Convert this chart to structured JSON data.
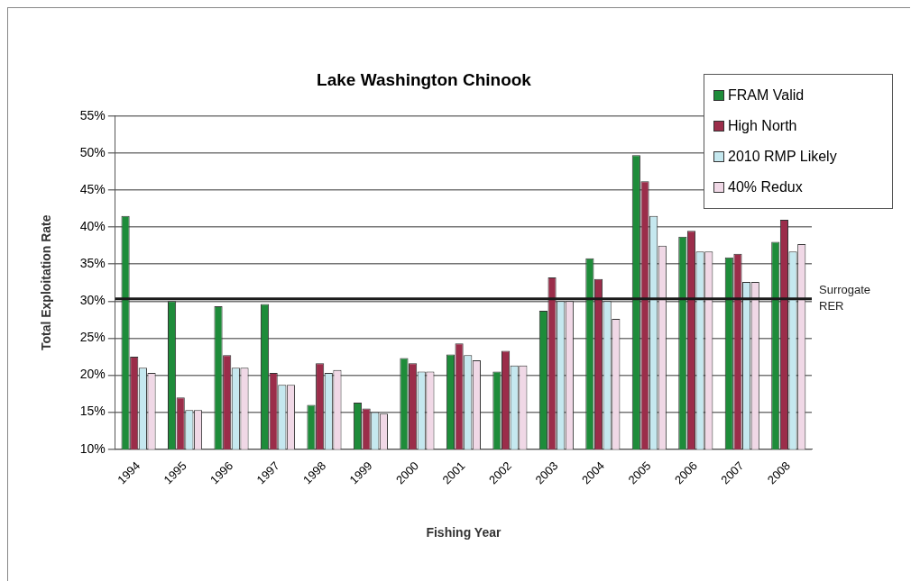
{
  "chart_data": {
    "type": "bar",
    "title": "Lake Washington Chinook",
    "xlabel": "Fishing Year",
    "ylabel": "Total Exploitation Rate",
    "categories": [
      "1994",
      "1995",
      "1996",
      "1997",
      "1998",
      "1999",
      "2000",
      "2001",
      "2002",
      "2003",
      "2004",
      "2005",
      "2006",
      "2007",
      "2008"
    ],
    "series": [
      {
        "name": "FRAM Valid",
        "color": "#1e8c3a",
        "values": [
          41.5,
          30,
          29.3,
          29.6,
          16,
          16.3,
          22.3,
          22.8,
          20.5,
          28.7,
          35.8,
          49.7,
          38.7,
          35.9,
          38
        ]
      },
      {
        "name": "High North",
        "color": "#9b2d4a",
        "values": [
          22.5,
          17,
          22.7,
          20.3,
          21.6,
          15.5,
          21.6,
          24.3,
          23.3,
          33.2,
          33,
          46.2,
          39.5,
          36.4,
          41
        ]
      },
      {
        "name": "2010 RMP Likely",
        "color": "#c5e8ef",
        "values": [
          21,
          15.3,
          21,
          18.7,
          20.3,
          15,
          20.5,
          22.7,
          21.3,
          30,
          30,
          41.5,
          36.7,
          32.6,
          36.7
        ]
      },
      {
        "name": "40% Redux",
        "color": "#f0d8e6",
        "values": [
          20.3,
          15.3,
          21,
          18.7,
          20.7,
          14.8,
          20.5,
          22,
          21.3,
          30,
          27.6,
          37.5,
          36.7,
          32.6,
          37.7
        ]
      }
    ],
    "ylim": [
      10,
      55
    ],
    "yticks": [
      {
        "value": 10,
        "label": "10%"
      },
      {
        "value": 15,
        "label": "15%"
      },
      {
        "value": 20,
        "label": "20%"
      },
      {
        "value": 25,
        "label": "25%"
      },
      {
        "value": 30,
        "label": "30%"
      },
      {
        "value": 35,
        "label": "35%"
      },
      {
        "value": 40,
        "label": "40%"
      },
      {
        "value": 45,
        "label": "45%"
      },
      {
        "value": 50,
        "label": "50%"
      },
      {
        "value": 55,
        "label": "55%"
      }
    ],
    "ref_lines": [
      {
        "axis": "y",
        "value": 30.3,
        "label": "Surrogate RER",
        "color": "#1a1a1a"
      }
    ],
    "grid": "y",
    "legend": "top right"
  }
}
